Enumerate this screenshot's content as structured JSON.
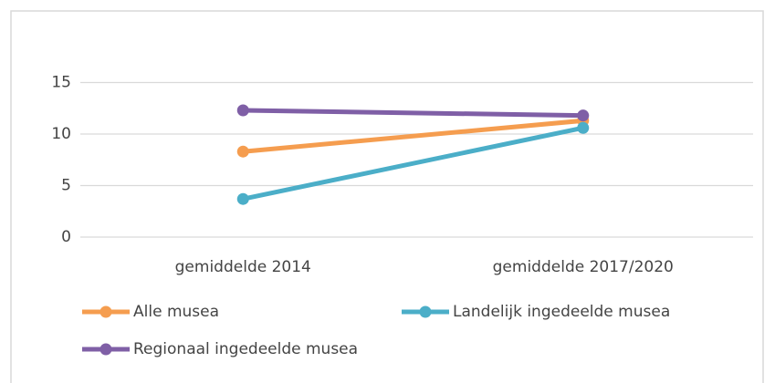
{
  "chart_data": {
    "type": "line",
    "categories": [
      "gemiddelde 2014",
      "gemiddelde 2017/2020"
    ],
    "series": [
      {
        "name": "Alle musea",
        "color": "#f59d4f",
        "values": [
          8.3,
          11.3
        ]
      },
      {
        "name": "Landelijk ingedeelde musea",
        "color": "#4baec8",
        "values": [
          3.7,
          10.6
        ]
      },
      {
        "name": "Regionaal ingedeelde musea",
        "color": "#7f5fa6",
        "values": [
          12.3,
          11.8
        ]
      }
    ],
    "ylim": [
      0,
      20
    ],
    "yticks": [
      0,
      5,
      10,
      15
    ],
    "grid": true,
    "legend": "bottom"
  }
}
